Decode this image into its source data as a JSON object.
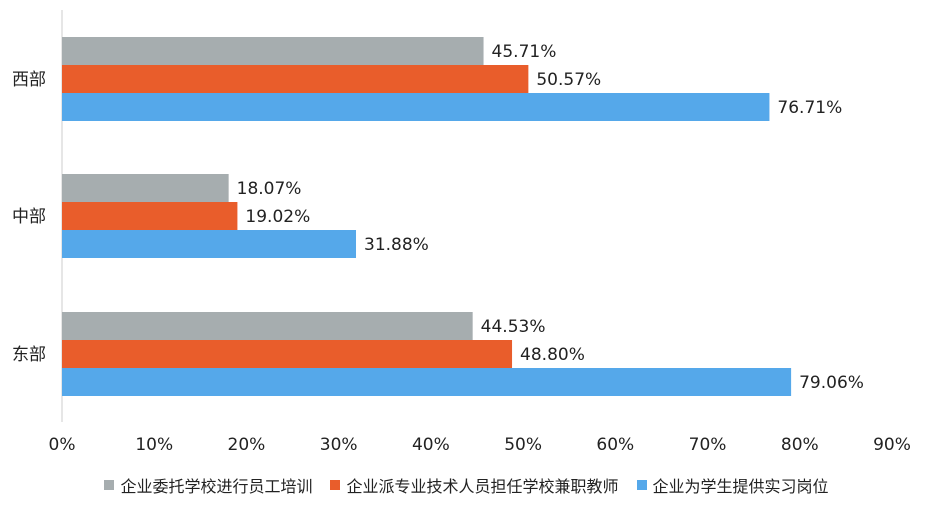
{
  "chart_data": {
    "type": "bar",
    "orientation": "horizontal",
    "categories": [
      "西部",
      "中部",
      "东部"
    ],
    "series": [
      {
        "name": "企业委托学校进行员工培训",
        "color": "#a6adaf",
        "values": [
          45.71,
          18.07,
          44.53
        ],
        "labels": [
          "45.71%",
          "18.07%",
          "44.53%"
        ]
      },
      {
        "name": "企业派专业技术人员担任学校兼职教师",
        "color": "#e95d2b",
        "values": [
          50.57,
          19.02,
          48.8
        ],
        "labels": [
          "50.57%",
          "19.02%",
          "48.80%"
        ]
      },
      {
        "name": "企业为学生提供实习岗位",
        "color": "#55a8ea",
        "values": [
          76.71,
          31.88,
          79.06
        ],
        "labels": [
          "76.71%",
          "31.88%",
          "79.06%"
        ]
      }
    ],
    "x_ticks": [
      "0%",
      "10%",
      "20%",
      "30%",
      "40%",
      "50%",
      "60%",
      "70%",
      "80%",
      "90%"
    ],
    "xlim": [
      0,
      90
    ],
    "grid": false,
    "legend_position": "bottom"
  }
}
